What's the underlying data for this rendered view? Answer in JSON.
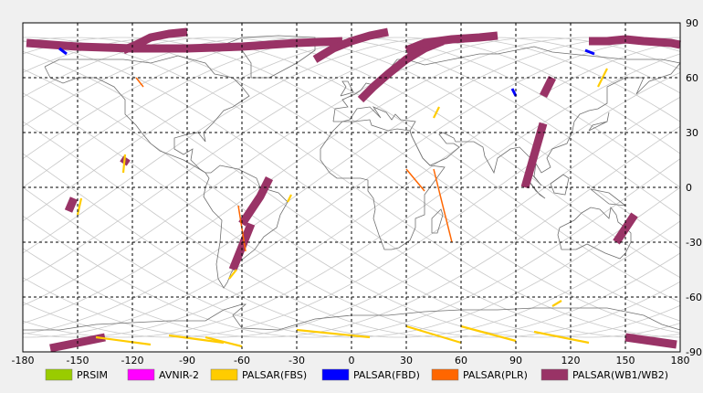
{
  "map": {
    "projection": "equirectangular",
    "lon_range": [
      -180,
      180
    ],
    "lat_range": [
      -90,
      90
    ],
    "grid": "dashed",
    "x_ticks": [
      "-180",
      "-150",
      "-120",
      "-90",
      "-60",
      "-30",
      "0",
      "30",
      "60",
      "90",
      "120",
      "150",
      "180"
    ],
    "y_ticks": [
      "90",
      "60",
      "30",
      "0",
      "-30",
      "-60",
      "-90"
    ]
  },
  "legend": [
    {
      "label": "PRSIM",
      "color": "#99cc00"
    },
    {
      "label": "AVNIR-2",
      "color": "#ff00ff"
    },
    {
      "label": "PALSAR(FBS)",
      "color": "#ffcc00"
    },
    {
      "label": "PALSAR(FBD)",
      "color": "#0000ff"
    },
    {
      "label": "PALSAR(PLR)",
      "color": "#ff6600"
    },
    {
      "label": "PALSAR(WB1/WB2)",
      "color": "#993366"
    }
  ],
  "colors": {
    "grid": "#000000",
    "orbit_tracks": "#c8c8c8",
    "coastline": "#707070",
    "frame_bg": "#ffffff",
    "page_bg": "#f0f0f0"
  },
  "wb_swaths": [
    {
      "lons": [
        -178,
        -150,
        -120,
        -90,
        -60,
        -30,
        -5
      ],
      "lats": [
        79,
        77,
        76,
        76,
        77,
        79,
        80
      ]
    },
    {
      "lons": [
        -125,
        -118,
        -110,
        -100,
        -90
      ],
      "lats": [
        75,
        78,
        82,
        84,
        85
      ]
    },
    {
      "lons": [
        -20,
        -10,
        0,
        10,
        20
      ],
      "lats": [
        70,
        76,
        80,
        83,
        85
      ]
    },
    {
      "lons": [
        5,
        12,
        20,
        30,
        40,
        50
      ],
      "lats": [
        48,
        55,
        62,
        70,
        76,
        80
      ]
    },
    {
      "lons": [
        30,
        40,
        55,
        70,
        80
      ],
      "lats": [
        75,
        79,
        81,
        82,
        83
      ]
    },
    {
      "lons": [
        -125,
        -123
      ],
      "lats": [
        13,
        16
      ]
    },
    {
      "lons": [
        -155,
        -152
      ],
      "lats": [
        -13,
        -6
      ]
    },
    {
      "lons": [
        -60,
        -50,
        -45
      ],
      "lats": [
        -20,
        -5,
        5
      ]
    },
    {
      "lons": [
        -65,
        -55
      ],
      "lats": [
        -45,
        -20
      ]
    },
    {
      "lons": [
        95,
        105
      ],
      "lats": [
        0,
        35
      ]
    },
    {
      "lons": [
        105,
        110
      ],
      "lats": [
        50,
        60
      ]
    },
    {
      "lons": [
        130,
        140,
        150,
        160,
        175,
        180
      ],
      "lats": [
        80,
        80,
        81,
        80,
        79,
        78
      ]
    },
    {
      "lons": [
        145,
        155
      ],
      "lats": [
        -30,
        -15
      ]
    },
    {
      "lons": [
        150,
        178
      ],
      "lats": [
        -82,
        -86
      ]
    },
    {
      "lons": [
        -165,
        -135
      ],
      "lats": [
        -88,
        -82
      ]
    }
  ],
  "fbs_swaths": [
    {
      "lons": [
        -150,
        -148
      ],
      "lats": [
        -15,
        -6
      ]
    },
    {
      "lons": [
        -125,
        -124
      ],
      "lats": [
        8,
        18
      ]
    },
    {
      "lons": [
        -35,
        -33
      ],
      "lats": [
        -8,
        -4
      ]
    },
    {
      "lons": [
        -67,
        -63
      ],
      "lats": [
        -50,
        -45
      ]
    },
    {
      "lons": [
        -80,
        -60
      ],
      "lats": [
        -82,
        -87
      ]
    },
    {
      "lons": [
        -140,
        -110
      ],
      "lats": [
        -82,
        -86
      ]
    },
    {
      "lons": [
        -100,
        -70
      ],
      "lats": [
        -81,
        -85
      ]
    },
    {
      "lons": [
        -30,
        10
      ],
      "lats": [
        -78,
        -82
      ]
    },
    {
      "lons": [
        30,
        60
      ],
      "lats": [
        -76,
        -85
      ]
    },
    {
      "lons": [
        60,
        90
      ],
      "lats": [
        -76,
        -84
      ]
    },
    {
      "lons": [
        100,
        130
      ],
      "lats": [
        -79,
        -85
      ]
    },
    {
      "lons": [
        45,
        48
      ],
      "lats": [
        38,
        44
      ]
    },
    {
      "lons": [
        135,
        140
      ],
      "lats": [
        55,
        65
      ]
    },
    {
      "lons": [
        110,
        115
      ],
      "lats": [
        -65,
        -62
      ]
    }
  ],
  "fbd_swaths": [
    {
      "lons": [
        -160,
        -156
      ],
      "lats": [
        76,
        73
      ]
    },
    {
      "lons": [
        128,
        133
      ],
      "lats": [
        75,
        73
      ]
    },
    {
      "lons": [
        88,
        90
      ],
      "lats": [
        54,
        50
      ]
    }
  ],
  "plr_swaths": [
    {
      "lons": [
        30,
        40
      ],
      "lats": [
        10,
        -2
      ]
    },
    {
      "lons": [
        45,
        55
      ],
      "lats": [
        10,
        -30
      ]
    },
    {
      "lons": [
        -62,
        -58
      ],
      "lats": [
        -10,
        -35
      ]
    },
    {
      "lons": [
        -118,
        -114
      ],
      "lats": [
        60,
        55
      ]
    }
  ]
}
